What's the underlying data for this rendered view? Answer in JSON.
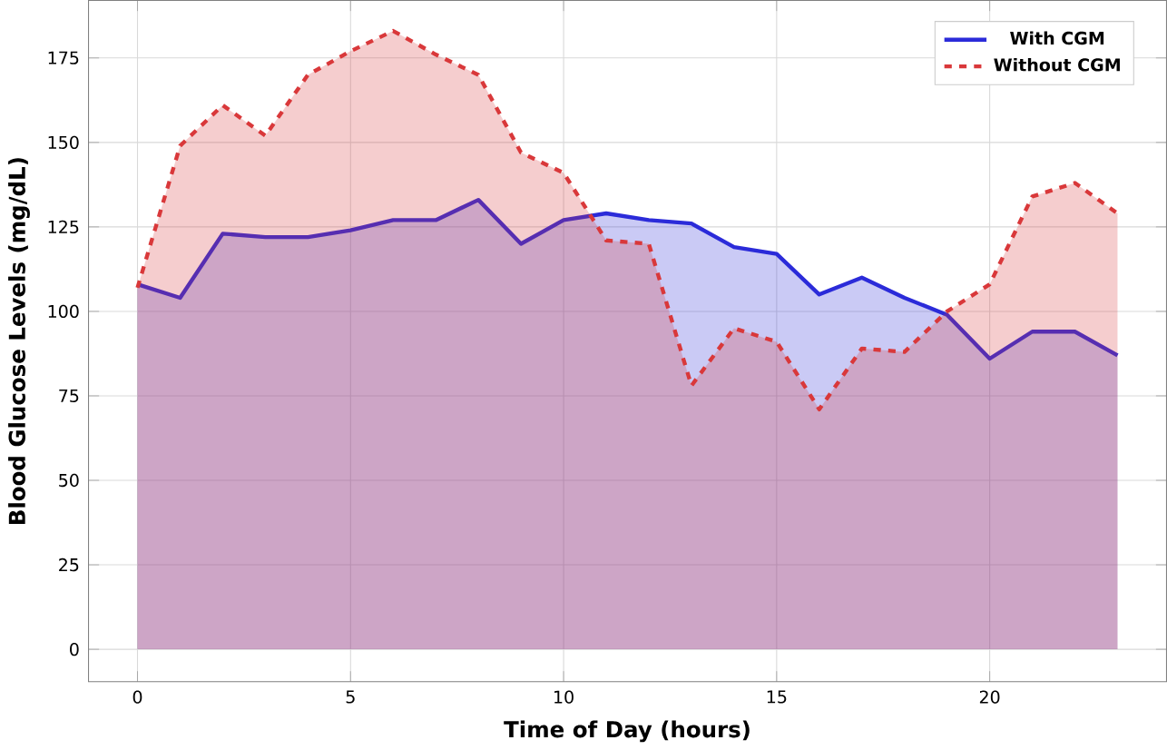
{
  "chart_data": {
    "type": "area",
    "xlabel": "Time of Day (hours)",
    "ylabel": "Blood Glucose Levels (mg/dL)",
    "x": [
      0,
      1,
      2,
      3,
      4,
      5,
      6,
      7,
      8,
      9,
      10,
      11,
      12,
      13,
      14,
      15,
      16,
      17,
      18,
      19,
      20,
      21,
      22,
      23
    ],
    "series": [
      {
        "name": "With CGM",
        "color": "#2b2bd9",
        "line_style": "solid",
        "values": [
          108,
          104,
          123,
          122,
          122,
          124,
          127,
          127,
          133,
          120,
          127,
          129,
          127,
          126,
          119,
          117,
          105,
          110,
          104,
          99,
          86,
          94,
          94,
          87
        ]
      },
      {
        "name": "Without CGM",
        "color": "#d9383a",
        "line_style": "dashed",
        "values": [
          107,
          149,
          161,
          152,
          170,
          177,
          183,
          176,
          170,
          147,
          141,
          121,
          120,
          78,
          95,
          91,
          71,
          89,
          88,
          100,
          108,
          134,
          138,
          129
        ]
      }
    ],
    "xlim": [
      -1.15,
      24.15
    ],
    "ylim": [
      -9.6,
      192
    ],
    "xticks": [
      0,
      5,
      10,
      15,
      20
    ],
    "yticks": [
      0,
      25,
      50,
      75,
      100,
      125,
      150,
      175
    ],
    "grid": true,
    "legend": "top right"
  }
}
